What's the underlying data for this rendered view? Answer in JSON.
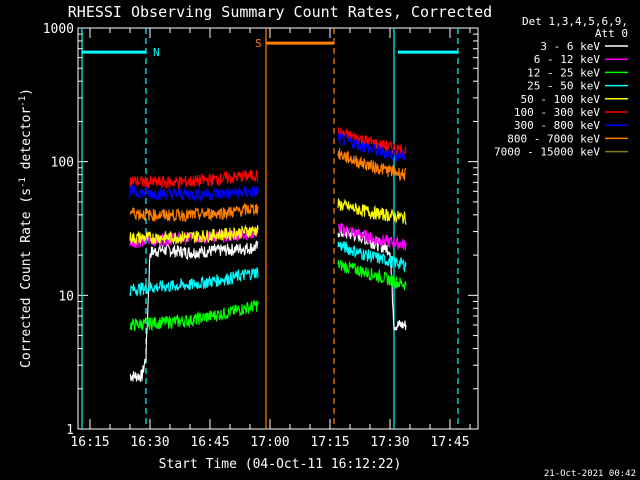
{
  "chart_data": {
    "type": "line",
    "title": "RHESSI Observing Summary Count Rates, Corrected",
    "xlabel": "Start Time (04-Oct-11 16:12:22)",
    "ylabel": "Corrected Count Rate (s⁻¹ detector⁻¹)",
    "yscale": "log",
    "ylim": [
      1,
      1000
    ],
    "xlim_minutes": [
      16.2,
      17.85
    ],
    "x_ticks": [
      "16:15",
      "16:30",
      "16:45",
      "17:00",
      "17:15",
      "17:30",
      "17:45"
    ],
    "y_ticks": [
      "1",
      "10",
      "100",
      "1000"
    ],
    "legend_header": [
      "Det 1,3,4,5,6,9,",
      "Att 0"
    ],
    "timestamp": "21-Oct-2021 00:42",
    "flags": [
      {
        "label": "N",
        "color": "#00ffff"
      },
      {
        "label": "S",
        "color": "#ff8000"
      }
    ],
    "series": [
      {
        "name": "3 - 6 keV",
        "color": "#ffffff",
        "seg1": {
          "x": [
            "16:25",
            "16:28",
            "16:29",
            "16:30",
            "16:33",
            "16:40",
            "16:50",
            "16:57"
          ],
          "y": [
            2.5,
            2.5,
            3.5,
            21,
            22,
            21,
            22,
            23
          ]
        },
        "seg2": {
          "x": [
            "17:17",
            "17:22",
            "17:27",
            "17:30",
            "17:31",
            "17:34"
          ],
          "y": [
            30,
            28,
            24,
            22,
            6,
            6
          ]
        }
      },
      {
        "name": "6 - 12 keV",
        "color": "#ff00ff",
        "seg1": {
          "x": [
            "16:25",
            "16:30",
            "16:40",
            "16:50",
            "16:57"
          ],
          "y": [
            25,
            26,
            27,
            28,
            30
          ]
        },
        "seg2": {
          "x": [
            "17:17",
            "17:22",
            "17:27",
            "17:34"
          ],
          "y": [
            32,
            29,
            26,
            24
          ]
        }
      },
      {
        "name": "12 - 25 keV",
        "color": "#00ff00",
        "seg1": {
          "x": [
            "16:25",
            "16:30",
            "16:40",
            "16:50",
            "16:57"
          ],
          "y": [
            6,
            6.2,
            6.5,
            7.5,
            8.5
          ]
        },
        "seg2": {
          "x": [
            "17:17",
            "17:22",
            "17:27",
            "17:34"
          ],
          "y": [
            17,
            15.5,
            14,
            12
          ]
        }
      },
      {
        "name": "25 - 50 keV",
        "color": "#00ffff",
        "seg1": {
          "x": [
            "16:25",
            "16:30",
            "16:40",
            "16:50",
            "16:57"
          ],
          "y": [
            11,
            11.5,
            12,
            13.5,
            15
          ]
        },
        "seg2": {
          "x": [
            "17:17",
            "17:22",
            "17:27",
            "17:34"
          ],
          "y": [
            24,
            21,
            19,
            17
          ]
        }
      },
      {
        "name": "50 - 100 keV",
        "color": "#ffff00",
        "seg1": {
          "x": [
            "16:25",
            "16:30",
            "16:40",
            "16:50",
            "16:57"
          ],
          "y": [
            27,
            27,
            27.5,
            29,
            31
          ]
        },
        "seg2": {
          "x": [
            "17:17",
            "17:22",
            "17:27",
            "17:34"
          ],
          "y": [
            48,
            44,
            41,
            38
          ]
        }
      },
      {
        "name": "100 - 300 keV",
        "color": "#ff0000",
        "seg1": {
          "x": [
            "16:25",
            "16:30",
            "16:40",
            "16:50",
            "16:57"
          ],
          "y": [
            72,
            70,
            71,
            76,
            80
          ]
        },
        "seg2": {
          "x": [
            "17:17",
            "17:22",
            "17:27",
            "17:34"
          ],
          "y": [
            165,
            150,
            135,
            120
          ]
        }
      },
      {
        "name": "300 - 800 keV",
        "color": "#0000ff",
        "seg1": {
          "x": [
            "16:25",
            "16:30",
            "16:40",
            "16:50",
            "16:57"
          ],
          "y": [
            60,
            58,
            57,
            58,
            60
          ]
        },
        "seg2": {
          "x": [
            "17:17",
            "17:22",
            "17:27",
            "17:34"
          ],
          "y": [
            150,
            135,
            120,
            110
          ]
        }
      },
      {
        "name": "800 - 7000 keV",
        "color": "#ff8000",
        "seg1": {
          "x": [
            "16:25",
            "16:30",
            "16:40",
            "16:50",
            "16:57"
          ],
          "y": [
            42,
            40,
            40,
            42,
            45
          ]
        },
        "seg2": {
          "x": [
            "17:17",
            "17:22",
            "17:27",
            "17:34"
          ],
          "y": [
            115,
            100,
            90,
            80
          ]
        }
      },
      {
        "name": "7000 - 15000 keV",
        "color": "#808000"
      }
    ],
    "flag_segments": [
      {
        "color": "#00ffff",
        "x": [
          "16:13",
          "16:29"
        ],
        "y": 660
      },
      {
        "color": "#ff8000",
        "x": [
          "16:59",
          "17:16"
        ],
        "y": 770
      },
      {
        "color": "#00ffff",
        "x": [
          "17:32",
          "17:47"
        ],
        "y": 660
      }
    ],
    "vlines": [
      {
        "color": "#00ffff",
        "x": "16:13",
        "style": "solid"
      },
      {
        "color": "#00ffff",
        "x": "16:29",
        "style": "dashed"
      },
      {
        "color": "#ff8000",
        "x": "16:59",
        "style": "solid"
      },
      {
        "color": "#ff8000",
        "x": "17:16",
        "style": "dashed"
      },
      {
        "color": "#00ffff",
        "x": "17:31",
        "style": "solid"
      },
      {
        "color": "#00ffff",
        "x": "17:47",
        "style": "dashed"
      }
    ]
  }
}
